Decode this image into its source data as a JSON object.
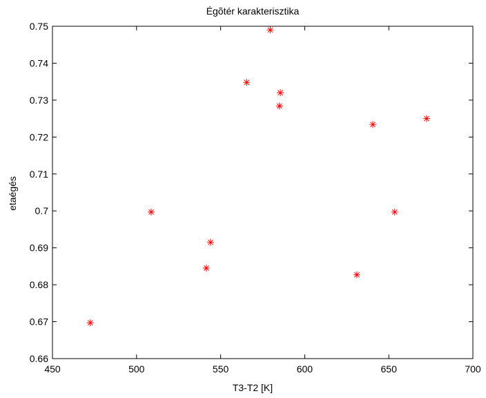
{
  "chart_data": {
    "type": "scatter",
    "title": "Égõtér karakterisztika",
    "xlabel": "T3-T2 [K]",
    "ylabel": "etaégés",
    "xlim": [
      450,
      700
    ],
    "ylim": [
      0.66,
      0.75
    ],
    "x_ticks": [
      450,
      500,
      550,
      600,
      650,
      700
    ],
    "x_tick_labels": [
      "450",
      "500",
      "550",
      "600",
      "650",
      "700"
    ],
    "y_ticks": [
      0.66,
      0.67,
      0.68,
      0.69,
      0.7,
      0.71,
      0.72,
      0.73,
      0.74,
      0.75
    ],
    "y_tick_labels": [
      "0.66",
      "0.67",
      "0.68",
      "0.69",
      "0.7",
      "0.71",
      "0.72",
      "0.73",
      "0.74",
      "0.75"
    ],
    "grid": false,
    "legend": "none",
    "marker": "asterisk",
    "marker_color": "#ff0000",
    "series": [
      {
        "points": [
          {
            "x": 472.5,
            "y": 0.6697
          },
          {
            "x": 508.7,
            "y": 0.6997
          },
          {
            "x": 541.5,
            "y": 0.6845
          },
          {
            "x": 544.0,
            "y": 0.6915
          },
          {
            "x": 565.5,
            "y": 0.7348
          },
          {
            "x": 579.5,
            "y": 0.749
          },
          {
            "x": 585.0,
            "y": 0.7284
          },
          {
            "x": 585.5,
            "y": 0.732
          },
          {
            "x": 631.0,
            "y": 0.6827
          },
          {
            "x": 640.5,
            "y": 0.7234
          },
          {
            "x": 653.5,
            "y": 0.6997
          },
          {
            "x": 672.5,
            "y": 0.725
          }
        ]
      }
    ]
  }
}
